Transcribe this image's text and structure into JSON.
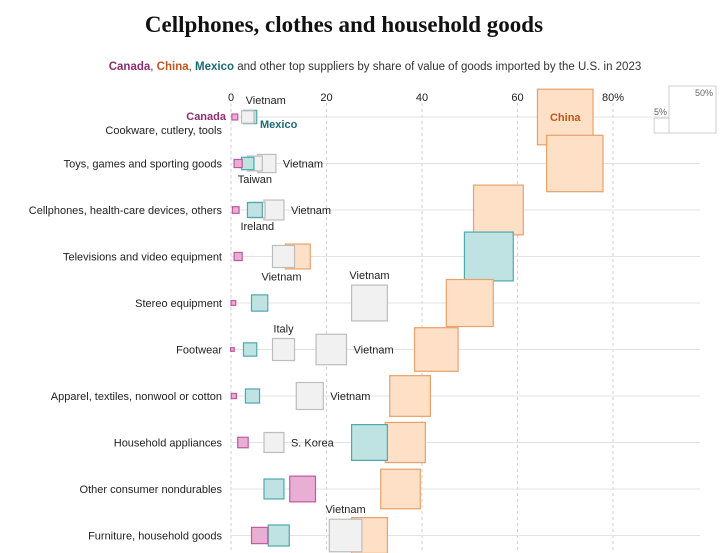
{
  "title": "Cellphones, clothes and household goods",
  "subtitle": {
    "canada": "Canada",
    "sep1": ", ",
    "china": "China",
    "sep2": ", ",
    "mexico": "Mexico",
    "rest": " and other top suppliers by share of value of goods imported by the U.S. in 2023"
  },
  "colors": {
    "canada_fill": "#e8aed3",
    "canada_stroke": "#c05aa0",
    "canada_text": "#8a2f6f",
    "china_fill": "#fde0c5",
    "china_stroke": "#e8a16c",
    "china_text": "#c0581c",
    "mexico_fill": "#bfe3e3",
    "mexico_stroke": "#4fa8ad",
    "mexico_text": "#1d6a72",
    "other_fill": "#f1f1f1",
    "other_stroke": "#bdbdbd"
  },
  "chart_data": {
    "type": "scatter",
    "note_encoding": "squares: x position = share of value (%), square area proportional to share",
    "xlim": [
      0,
      80
    ],
    "xticks": [
      "0",
      "20",
      "40",
      "60",
      "80%"
    ],
    "size_legend": [
      {
        "label": "5%",
        "value": 5
      },
      {
        "label": "50%",
        "value": 50
      }
    ],
    "inline_labels": {
      "canada": "Canada",
      "mexico": "Mexico",
      "china": "China"
    },
    "categories": [
      {
        "name": "Cookware, cutlery, tools",
        "points": [
          {
            "series": "Canada",
            "value": 0.8
          },
          {
            "series": "Other",
            "value": 3.5,
            "label": "Vietnam"
          },
          {
            "series": "Mexico",
            "value": 4.0
          },
          {
            "series": "China",
            "value": 70
          }
        ]
      },
      {
        "name": "Toys, games and sporting goods",
        "points": [
          {
            "series": "Canada",
            "value": 1.5
          },
          {
            "series": "Mexico",
            "value": 3.5
          },
          {
            "series": "Other",
            "value": 5,
            "label": "Taiwan"
          },
          {
            "series": "Other",
            "value": 7.5,
            "label": "Vietnam"
          },
          {
            "series": "China",
            "value": 72
          }
        ]
      },
      {
        "name": "Cellphones, health-care devices, others",
        "points": [
          {
            "series": "Canada",
            "value": 1.0
          },
          {
            "series": "Mexico",
            "value": 5
          },
          {
            "series": "Other",
            "value": 5.5,
            "label": "Ireland"
          },
          {
            "series": "Other",
            "value": 9,
            "label": "Vietnam"
          },
          {
            "series": "China",
            "value": 56
          }
        ]
      },
      {
        "name": "Televisions and video equipment",
        "points": [
          {
            "series": "Canada",
            "value": 1.5
          },
          {
            "series": "China",
            "value": 14
          },
          {
            "series": "Other",
            "value": 11,
            "label": "Vietnam"
          },
          {
            "series": "Mexico",
            "value": 54
          }
        ]
      },
      {
        "name": "Stereo equipment",
        "points": [
          {
            "series": "Canada",
            "value": 0.5
          },
          {
            "series": "Mexico",
            "value": 6
          },
          {
            "series": "Other",
            "value": 29,
            "label": "Vietnam"
          },
          {
            "series": "China",
            "value": 50
          }
        ]
      },
      {
        "name": "Footwear",
        "points": [
          {
            "series": "Canada",
            "value": 0.3
          },
          {
            "series": "Mexico",
            "value": 4
          },
          {
            "series": "Other",
            "value": 11,
            "label": "Italy"
          },
          {
            "series": "Other",
            "value": 21,
            "label": "Vietnam"
          },
          {
            "series": "China",
            "value": 43
          }
        ]
      },
      {
        "name": "Apparel, textiles, nonwool or cotton",
        "points": [
          {
            "series": "Canada",
            "value": 0.6
          },
          {
            "series": "Mexico",
            "value": 4.5
          },
          {
            "series": "Other",
            "value": 16.5,
            "label": "Vietnam"
          },
          {
            "series": "China",
            "value": 37.5
          }
        ]
      },
      {
        "name": "Household appliances",
        "points": [
          {
            "series": "Canada",
            "value": 2.5
          },
          {
            "series": "Other",
            "value": 9,
            "label": "S. Korea"
          },
          {
            "series": "Mexico",
            "value": 29
          },
          {
            "series": "China",
            "value": 36.5
          }
        ]
      },
      {
        "name": "Other consumer nondurables",
        "points": [
          {
            "series": "Mexico",
            "value": 9
          },
          {
            "series": "Canada",
            "value": 15
          },
          {
            "series": "China",
            "value": 35.5
          }
        ]
      },
      {
        "name": "Furniture, household goods",
        "points": [
          {
            "series": "Canada",
            "value": 6
          },
          {
            "series": "Mexico",
            "value": 10
          },
          {
            "series": "Other",
            "value": 24,
            "label": "Vietnam"
          },
          {
            "series": "China",
            "value": 29
          }
        ]
      }
    ]
  }
}
